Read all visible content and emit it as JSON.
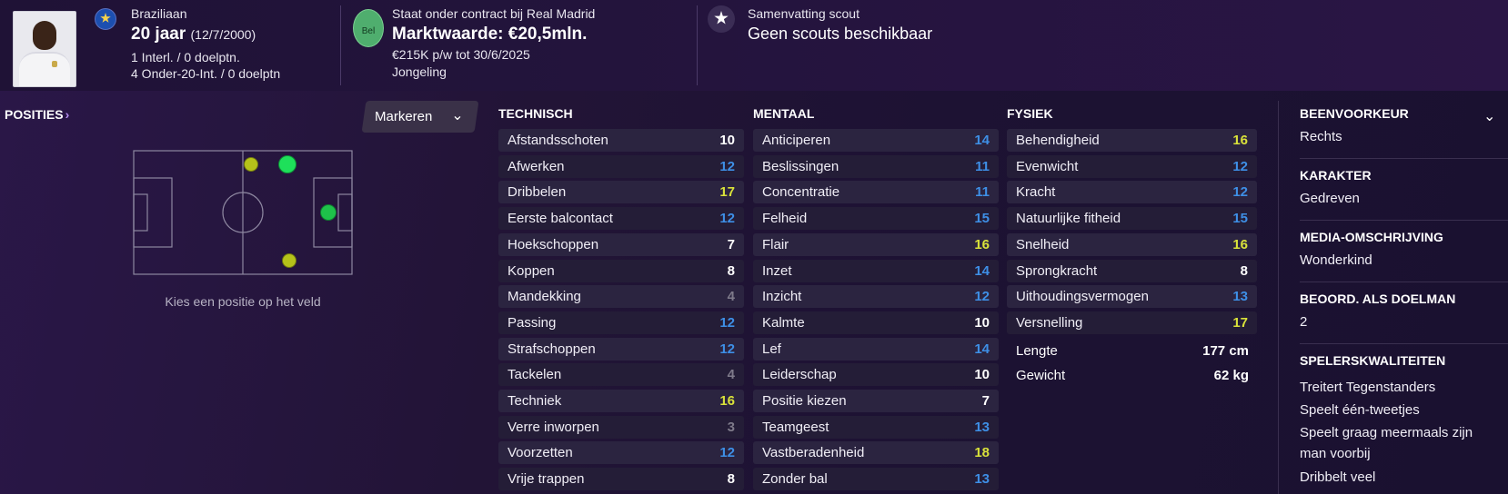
{
  "header": {
    "nationality": "Braziliaan",
    "age": "20 jaar",
    "dob": "(12/7/2000)",
    "intl_caps": "1 Interl. / 0 doelptn.",
    "u20_caps": "4 Onder-20-Int. / 0 doelptn",
    "contract": "Staat onder contract bij Real Madrid",
    "club_badge": "Bel",
    "market_value": "Marktwaarde: €20,5mln.",
    "wage": "€215K p/w tot 30/6/2025",
    "status": "Jongeling",
    "scout_title": "Samenvatting scout",
    "scout_text": "Geen scouts beschikbaar"
  },
  "positions": {
    "title": "POSITIES",
    "marker_button": "Markeren",
    "caption": "Kies een positie op het veld",
    "dots": [
      {
        "role": "left-wing",
        "rating": "accomplished",
        "color": "#b5c21a"
      },
      {
        "role": "attacking-midfield-left",
        "rating": "natural",
        "color": "#1ee05a"
      },
      {
        "role": "striker",
        "rating": "natural",
        "color": "#1ec24a"
      },
      {
        "role": "right-wing",
        "rating": "accomplished",
        "color": "#b5c21a"
      }
    ]
  },
  "technical": {
    "title": "TECHNISCH",
    "attrs": [
      {
        "name": "Afstandsschoten",
        "value": "10",
        "tone": "white"
      },
      {
        "name": "Afwerken",
        "value": "12",
        "tone": "blue"
      },
      {
        "name": "Dribbelen",
        "value": "17",
        "tone": "yellow"
      },
      {
        "name": "Eerste balcontact",
        "value": "12",
        "tone": "blue"
      },
      {
        "name": "Hoekschoppen",
        "value": "7",
        "tone": "white"
      },
      {
        "name": "Koppen",
        "value": "8",
        "tone": "white"
      },
      {
        "name": "Mandekking",
        "value": "4",
        "tone": "grey"
      },
      {
        "name": "Passing",
        "value": "12",
        "tone": "blue"
      },
      {
        "name": "Strafschoppen",
        "value": "12",
        "tone": "blue"
      },
      {
        "name": "Tackelen",
        "value": "4",
        "tone": "grey"
      },
      {
        "name": "Techniek",
        "value": "16",
        "tone": "yellow"
      },
      {
        "name": "Verre inworpen",
        "value": "3",
        "tone": "grey"
      },
      {
        "name": "Voorzetten",
        "value": "12",
        "tone": "blue"
      },
      {
        "name": "Vrije trappen",
        "value": "8",
        "tone": "white"
      }
    ]
  },
  "mental": {
    "title": "MENTAAL",
    "attrs": [
      {
        "name": "Anticiperen",
        "value": "14",
        "tone": "blue"
      },
      {
        "name": "Beslissingen",
        "value": "11",
        "tone": "blue"
      },
      {
        "name": "Concentratie",
        "value": "11",
        "tone": "blue"
      },
      {
        "name": "Felheid",
        "value": "15",
        "tone": "blue"
      },
      {
        "name": "Flair",
        "value": "16",
        "tone": "yellow"
      },
      {
        "name": "Inzet",
        "value": "14",
        "tone": "blue"
      },
      {
        "name": "Inzicht",
        "value": "12",
        "tone": "blue"
      },
      {
        "name": "Kalmte",
        "value": "10",
        "tone": "white"
      },
      {
        "name": "Lef",
        "value": "14",
        "tone": "blue"
      },
      {
        "name": "Leiderschap",
        "value": "10",
        "tone": "white"
      },
      {
        "name": "Positie kiezen",
        "value": "7",
        "tone": "white"
      },
      {
        "name": "Teamgeest",
        "value": "13",
        "tone": "blue"
      },
      {
        "name": "Vastberadenheid",
        "value": "18",
        "tone": "yellow"
      },
      {
        "name": "Zonder bal",
        "value": "13",
        "tone": "blue"
      }
    ]
  },
  "physical": {
    "title": "FYSIEK",
    "attrs": [
      {
        "name": "Behendigheid",
        "value": "16",
        "tone": "yellow"
      },
      {
        "name": "Evenwicht",
        "value": "12",
        "tone": "blue"
      },
      {
        "name": "Kracht",
        "value": "12",
        "tone": "blue"
      },
      {
        "name": "Natuurlijke fitheid",
        "value": "15",
        "tone": "blue"
      },
      {
        "name": "Snelheid",
        "value": "16",
        "tone": "yellow"
      },
      {
        "name": "Sprongkracht",
        "value": "8",
        "tone": "white"
      },
      {
        "name": "Uithoudingsvermogen",
        "value": "13",
        "tone": "blue"
      },
      {
        "name": "Versnelling",
        "value": "17",
        "tone": "yellow"
      }
    ],
    "height_label": "Lengte",
    "height_value": "177 cm",
    "weight_label": "Gewicht",
    "weight_value": "62 kg"
  },
  "profile": {
    "foot_title": "BEENVOORKEUR",
    "foot_value": "Rechts",
    "personality_title": "KARAKTER",
    "personality_value": "Gedreven",
    "media_title": "MEDIA-OMSCHRIJVING",
    "media_value": "Wonderkind",
    "gk_title": "BEOORD. ALS DOELMAN",
    "gk_value": "2",
    "traits_title": "SPELERSKWALITEITEN",
    "traits": [
      "Treitert Tegenstanders",
      "Speelt één-tweetjes",
      "Speelt graag meermaals zijn man voorbij",
      "Dribbelt veel"
    ]
  },
  "colors": {
    "white": "#ffffff",
    "blue": "#3e8fe6",
    "yellow": "#d9e23a",
    "grey": "#7e7a8a",
    "accent": "#b58cf0"
  }
}
